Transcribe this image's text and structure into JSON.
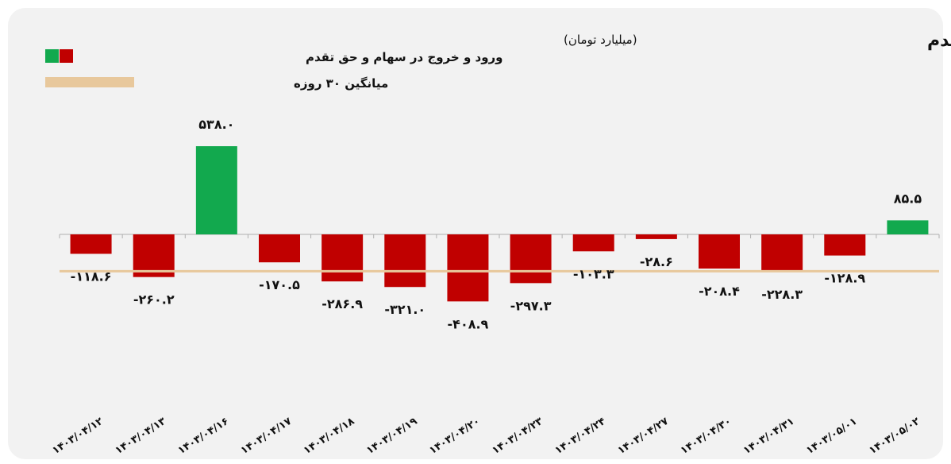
{
  "chart_data": {
    "type": "bar",
    "title": "ورود و خروج پول حقیقی در سهام و حق تقدم",
    "subtitle": "(میلیارد تومان)",
    "categories": [
      "۱۴۰۳/۰۴/۱۲",
      "۱۴۰۳/۰۴/۱۳",
      "۱۴۰۳/۰۴/۱۶",
      "۱۴۰۳/۰۴/۱۷",
      "۱۴۰۳/۰۴/۱۸",
      "۱۴۰۳/۰۴/۱۹",
      "۱۴۰۳/۰۴/۲۰",
      "۱۴۰۳/۰۴/۲۳",
      "۱۴۰۳/۰۴/۲۴",
      "۱۴۰۳/۰۴/۲۷",
      "۱۴۰۳/۰۴/۳۰",
      "۱۴۰۳/۰۴/۳۱",
      "۱۴۰۳/۰۵/۰۱",
      "۱۴۰۳/۰۵/۰۲"
    ],
    "values": [
      -118.6,
      -260.2,
      538.0,
      -170.5,
      -286.9,
      -321.0,
      -408.9,
      -297.3,
      -103.3,
      -28.6,
      -208.4,
      -228.3,
      -128.9,
      85.5
    ],
    "value_labels": [
      "-۱۱۸.۶",
      "-۲۶۰.۲",
      "۵۳۸.۰",
      "-۱۷۰.۵",
      "-۲۸۶.۹",
      "-۳۲۱.۰",
      "-۴۰۸.۹",
      "-۲۹۷.۳",
      "-۱۰۳.۳",
      "-۲۸.۶",
      "-۲۰۸.۴",
      "-۲۲۸.۳",
      "-۱۲۸.۹",
      "۸۵.۵"
    ],
    "average_30d": -225,
    "legend": [
      {
        "name": "ورود و خروج در سهام و حق تقدم",
        "kind": "bars"
      },
      {
        "name": "میانگین ۳۰ روزه",
        "kind": "line"
      }
    ],
    "legend_position": "top-left",
    "ylim": [
      -1000,
      600
    ],
    "grid": false,
    "colors": {
      "positive": "#12a94e",
      "negative": "#c00000",
      "average": "#e8c89c",
      "axis": "#b0b0b0",
      "background": "#f2f2f2"
    }
  }
}
